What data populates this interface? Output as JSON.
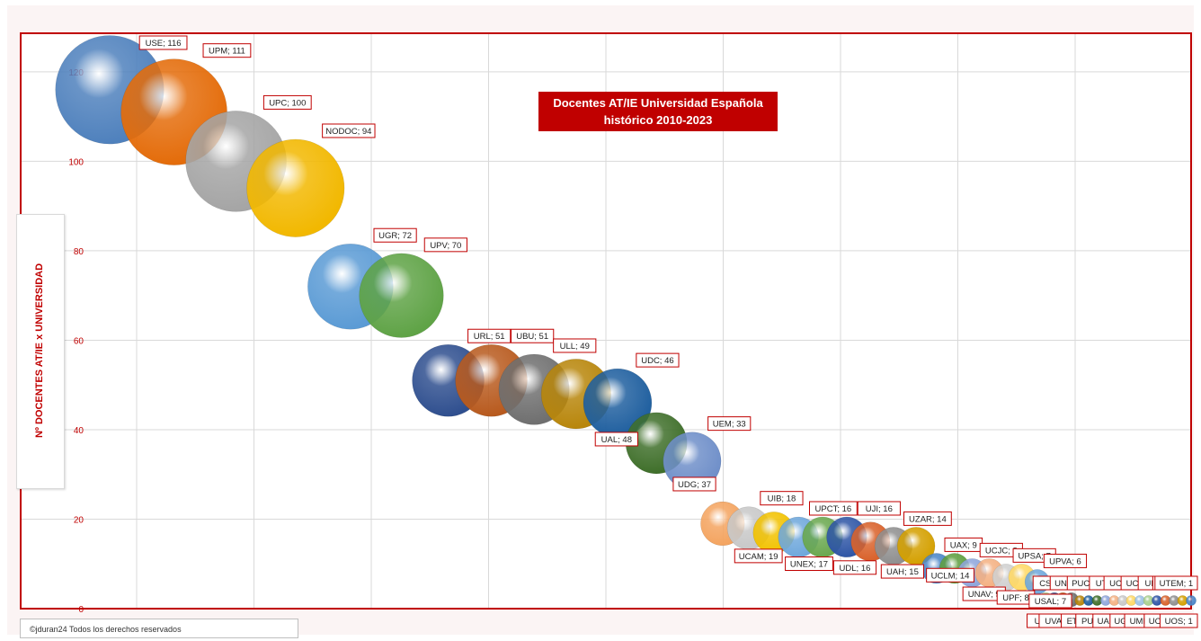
{
  "chart_data": {
    "type": "bubble",
    "title_line1": "Docentes AT/IE Universidad Española",
    "title_line2": "histórico 2010-2023",
    "ylabel": "Nº DOCENTES AT/IE x UNIVERSIDAD",
    "ylim": [
      0,
      124
    ],
    "yticks": [
      0,
      20,
      40,
      60,
      80,
      100,
      120
    ],
    "grid": true,
    "points": [
      {
        "name": "USE",
        "value": 116,
        "color": "#4f81bd"
      },
      {
        "name": "UPM",
        "value": 111,
        "color": "#e46c0a"
      },
      {
        "name": "UPC",
        "value": 100,
        "color": "#a5a5a5"
      },
      {
        "name": "NODOC",
        "value": 94,
        "color": "#f2b800"
      },
      {
        "name": "UGR",
        "value": 72,
        "color": "#5b9bd5"
      },
      {
        "name": "UPV",
        "value": 70,
        "color": "#5fa346"
      },
      {
        "name": "URL",
        "value": 51,
        "color": "#2f4f8f"
      },
      {
        "name": "UBU",
        "value": 51,
        "color": "#b85a1e"
      },
      {
        "name": "ULL",
        "value": 49,
        "color": "#6f6f6f"
      },
      {
        "name": "UAL",
        "value": 48,
        "color": "#b8860b"
      },
      {
        "name": "UDC",
        "value": 46,
        "color": "#1f5f9f"
      },
      {
        "name": "UDG",
        "value": 37,
        "color": "#3f6f2a"
      },
      {
        "name": "UEM",
        "value": 33,
        "color": "#6f8fc9"
      },
      {
        "name": "UCAM",
        "value": 19,
        "color": "#f4a460"
      },
      {
        "name": "UIB",
        "value": 18,
        "color": "#c8c8c8"
      },
      {
        "name": "UNEX",
        "value": 17,
        "color": "#f2c200"
      },
      {
        "name": "UPCT",
        "value": 16,
        "color": "#6fa8dc"
      },
      {
        "name": "UDL",
        "value": 16,
        "color": "#6aa84f"
      },
      {
        "name": "UJI",
        "value": 16,
        "color": "#2f56a6"
      },
      {
        "name": "UAH",
        "value": 15,
        "color": "#d9622b"
      },
      {
        "name": "UZAR",
        "value": 14,
        "color": "#8f8f8f"
      },
      {
        "name": "UCLM",
        "value": 14,
        "color": "#d4a000"
      },
      {
        "name": "UAX",
        "value": 9,
        "color": "#4a86c8"
      },
      {
        "name": "UNAV",
        "value": 9,
        "color": "#5f9f3f"
      },
      {
        "name": "UCJC",
        "value": 8,
        "color": "#8fa6dc"
      },
      {
        "name": "UPF",
        "value": 8,
        "color": "#f4b183"
      },
      {
        "name": "UPSA",
        "value": 7,
        "color": "#d0d0d0"
      },
      {
        "name": "USAL",
        "value": 7,
        "color": "#ffd966"
      },
      {
        "name": "UPVA",
        "value": 6,
        "color": "#6fa8dc"
      },
      {
        "name": "UI1",
        "value": 2,
        "color": "#a9d18e"
      },
      {
        "name": "CSIC",
        "value": 2,
        "color": "#2f4f8f"
      },
      {
        "name": "UVALL",
        "value": 2,
        "color": "#b85a1e"
      },
      {
        "name": "UNED",
        "value": 2,
        "color": "#6f6f6f"
      },
      {
        "name": "ETH",
        "value": 1,
        "color": "#b8860b"
      },
      {
        "name": "PUCC",
        "value": 1,
        "color": "#1f5f9f"
      },
      {
        "name": "PUJB",
        "value": 1,
        "color": "#3f6f2a"
      },
      {
        "name": "UT",
        "value": 1,
        "color": "#8fa6dc"
      },
      {
        "name": "UACH",
        "value": 1,
        "color": "#f4b183"
      },
      {
        "name": "UC3",
        "value": 1,
        "color": "#c8c8c8"
      },
      {
        "name": "UGUA",
        "value": 1,
        "color": "#ffd966"
      },
      {
        "name": "UCA",
        "value": 1,
        "color": "#9dc3e6"
      },
      {
        "name": "UMICH",
        "value": 1,
        "color": "#a9d18e"
      },
      {
        "name": "UIR",
        "value": 1,
        "color": "#2f56a6"
      },
      {
        "name": "UCEU",
        "value": 1,
        "color": "#d9622b"
      },
      {
        "name": "UPCA",
        "value": 1,
        "color": "#8f8f8f"
      },
      {
        "name": "UOS",
        "value": 1,
        "color": "#d4a000"
      },
      {
        "name": "UTEM",
        "value": 1,
        "color": "#4a86c8"
      }
    ]
  },
  "footer": {
    "copyright": "©jduran24 Todos los derechos reservados"
  },
  "colors": {
    "accent": "#c00000",
    "gridline": "#d9d9d9"
  }
}
